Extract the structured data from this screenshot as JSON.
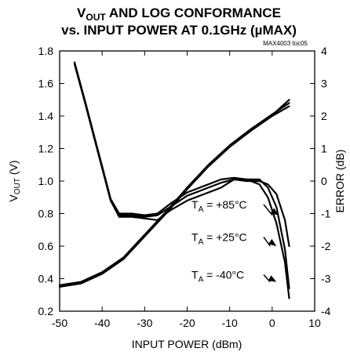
{
  "header": {
    "title_line1_v": "V",
    "title_line1_sub": "OUT",
    "title_line1_rest": " AND LOG CONFORMANCE",
    "title_line2": "vs. INPUT POWER AT 0.1GHz (µMAX)",
    "figure_id": "MAX4003 toc05"
  },
  "chart_data": {
    "type": "line",
    "xlabel": "INPUT POWER (dBm)",
    "ylabel_v": "V",
    "ylabel_sub": "OUT",
    "ylabel_rest": " (V)",
    "y2label": "ERROR (dB)",
    "xlim": [
      -50,
      10
    ],
    "ylim": [
      0.2,
      1.8
    ],
    "y2lim": [
      -4,
      4
    ],
    "x_ticks": [
      "-50",
      "-40",
      "-30",
      "-20",
      "-10",
      "0",
      "10"
    ],
    "y_ticks": [
      "0.2",
      "0.4",
      "0.6",
      "0.8",
      "1.0",
      "1.2",
      "1.4",
      "1.6",
      "1.8"
    ],
    "y2_ticks": [
      "-4",
      "-3",
      "-2",
      "-1",
      "0",
      "1",
      "2",
      "3",
      "4"
    ],
    "grid": false,
    "series": [
      {
        "axis": "left",
        "x": [
          -50,
          -45,
          -40,
          -35,
          -30,
          -25,
          -20,
          -15,
          -10,
          -5,
          0,
          4
        ],
        "y": [
          0.35,
          0.37,
          0.43,
          0.52,
          0.66,
          0.8,
          0.95,
          1.09,
          1.21,
          1.31,
          1.4,
          1.46
        ]
      },
      {
        "axis": "left",
        "x": [
          -50,
          -45,
          -40,
          -35,
          -30,
          -25,
          -20,
          -15,
          -10,
          -5,
          0,
          4
        ],
        "y": [
          0.36,
          0.38,
          0.44,
          0.53,
          0.67,
          0.81,
          0.96,
          1.1,
          1.22,
          1.32,
          1.41,
          1.48
        ]
      },
      {
        "axis": "left",
        "x": [
          -50,
          -45,
          -40,
          -35,
          -30,
          -25,
          -20,
          -15,
          -10,
          -5,
          0,
          4
        ],
        "y": [
          0.355,
          0.375,
          0.435,
          0.525,
          0.665,
          0.805,
          0.955,
          1.095,
          1.215,
          1.315,
          1.405,
          1.5
        ]
      },
      {
        "axis": "right",
        "x": [
          -46.5,
          -44,
          -42,
          -40,
          -38,
          -36,
          -33,
          -30,
          -27,
          -24,
          -20,
          -16,
          -12,
          -9,
          -6,
          -3,
          -1,
          1,
          3,
          4
        ],
        "y": [
          3.6,
          2.4,
          1.4,
          0.4,
          -0.6,
          -1.05,
          -1.05,
          -1.1,
          -1.05,
          -0.8,
          -0.45,
          -0.25,
          -0.05,
          0.05,
          0.0,
          0.0,
          -0.1,
          -0.4,
          -1.2,
          -2.0
        ]
      },
      {
        "axis": "right",
        "x": [
          -46.5,
          -44,
          -42,
          -40,
          -38,
          -36,
          -33,
          -30,
          -27,
          -24,
          -20,
          -16,
          -12,
          -9,
          -6,
          -3,
          -1,
          1,
          3,
          4
        ],
        "y": [
          3.65,
          2.45,
          1.45,
          0.45,
          -0.55,
          -1.0,
          -1.0,
          -1.05,
          -1.0,
          -0.7,
          -0.35,
          -0.15,
          0.05,
          0.1,
          0.05,
          0.05,
          -0.2,
          -0.8,
          -2.1,
          -3.3
        ]
      },
      {
        "axis": "right",
        "x": [
          -46.5,
          -44,
          -42,
          -40,
          -38,
          -36,
          -33,
          -30,
          -27,
          -24,
          -20,
          -16,
          -12,
          -9,
          -6,
          -3,
          -1,
          1,
          3,
          4
        ],
        "y": [
          3.6,
          2.4,
          1.4,
          0.4,
          -0.6,
          -1.1,
          -1.1,
          -1.15,
          -1.2,
          -0.9,
          -0.6,
          -0.4,
          -0.2,
          0.05,
          0.05,
          -0.1,
          -0.5,
          -1.3,
          -2.5,
          -3.6
        ]
      }
    ],
    "annotations": [
      {
        "T": "T",
        "sub": "A",
        "rest": " = +85°C",
        "arrow_to": [
          1.5,
          -1.05
        ]
      },
      {
        "T": "T",
        "sub": "A",
        "rest": " = +25°C",
        "arrow_to": [
          1.0,
          -2.0
        ]
      },
      {
        "T": "T",
        "sub": "A",
        "rest": " = -40°C",
        "arrow_to": [
          1.0,
          -3.1
        ]
      }
    ]
  }
}
